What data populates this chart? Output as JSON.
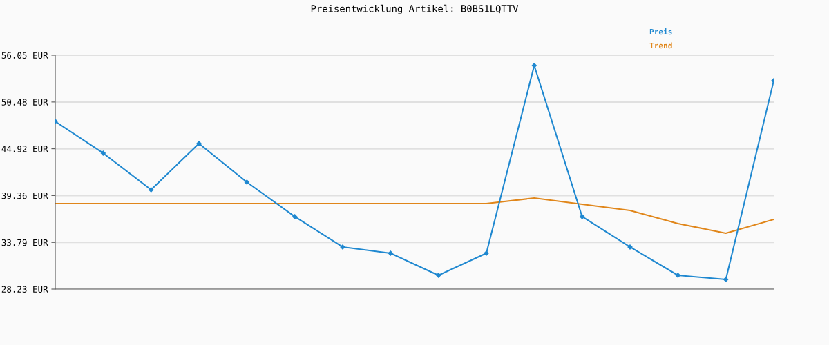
{
  "chart_data": {
    "type": "line",
    "title": "Preisentwicklung Artikel: B0BS1LQTTV",
    "categories": [
      null,
      null,
      null,
      null,
      null,
      null,
      null,
      null,
      null,
      null,
      null,
      null,
      null,
      null,
      null,
      null
    ],
    "series": [
      {
        "name": "Preis",
        "color": "#1f88d0",
        "marker": "diamond",
        "values": [
          48.17,
          44.4,
          40.05,
          45.55,
          40.95,
          36.85,
          33.24,
          32.5,
          29.87,
          32.5,
          54.82,
          36.85,
          33.24,
          29.87,
          29.38,
          53.02
        ]
      },
      {
        "name": "Trend",
        "color": "#e0861a",
        "marker": "none",
        "values": [
          38.41,
          38.41,
          38.41,
          38.41,
          38.41,
          38.41,
          38.41,
          38.41,
          38.41,
          38.41,
          39.06,
          38.32,
          37.59,
          36.03,
          34.88,
          36.52
        ]
      }
    ],
    "ylim": [
      28.23,
      56.05
    ],
    "yticks": [
      {
        "value": 28.23,
        "label": "28.23 EUR"
      },
      {
        "value": 33.79,
        "label": "33.79 EUR"
      },
      {
        "value": 39.36,
        "label": "39.36 EUR"
      },
      {
        "value": 44.92,
        "label": "44.92 EUR"
      },
      {
        "value": 50.48,
        "label": "50.48 EUR"
      },
      {
        "value": 56.05,
        "label": "56.05 EUR"
      }
    ],
    "grid": "y",
    "legend": "top right",
    "tick_labels": "y",
    "line_style": "solid"
  }
}
